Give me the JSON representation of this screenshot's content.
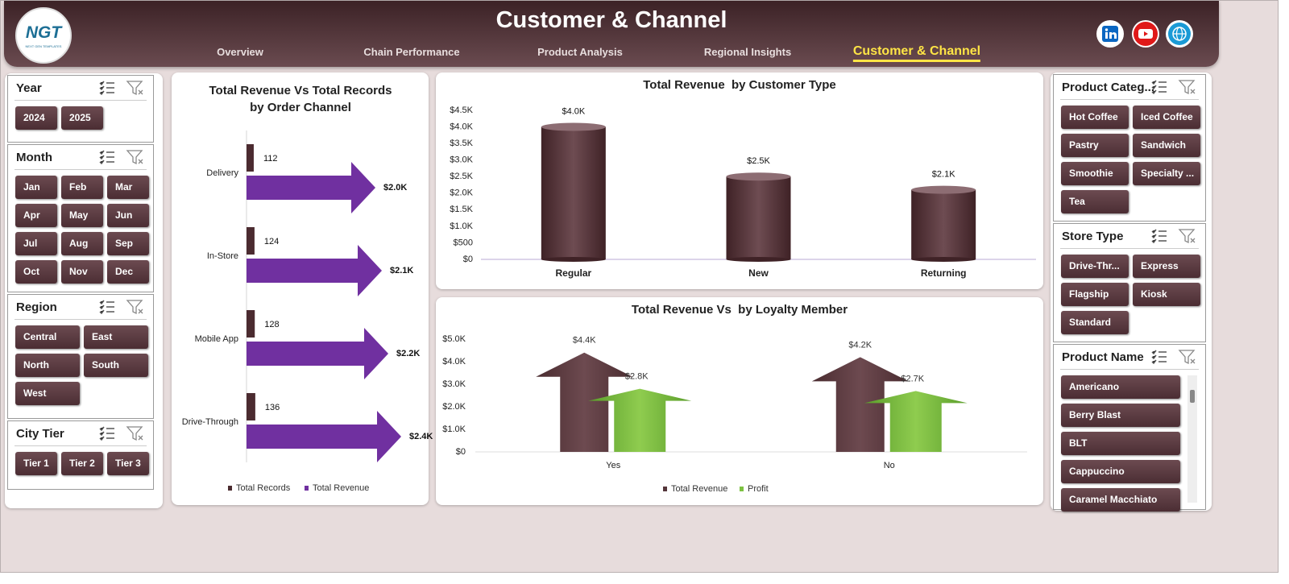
{
  "header": {
    "logo": "NGT",
    "logo_tagline": "NEXT GEN TEMPLATES",
    "title": "Customer & Channel",
    "nav": [
      "Overview",
      "Chain Performance",
      "Product Analysis",
      "Regional Insights",
      "Customer & Channel"
    ],
    "active_nav": 4
  },
  "slicers_left": [
    {
      "title": "Year",
      "items": [
        "2024",
        "2025"
      ]
    },
    {
      "title": "Month",
      "items": [
        "Jan",
        "Feb",
        "Mar",
        "Apr",
        "May",
        "Jun",
        "Jul",
        "Aug",
        "Sep",
        "Oct",
        "Nov",
        "Dec"
      ]
    },
    {
      "title": "Region",
      "items": [
        "Central",
        "East",
        "North",
        "South",
        "West"
      ]
    },
    {
      "title": "City Tier",
      "items": [
        "Tier 1",
        "Tier 2",
        "Tier 3"
      ]
    }
  ],
  "slicers_right": [
    {
      "title": "Product Categ...",
      "items": [
        "Hot Coffee",
        "Iced Coffee",
        "Pastry",
        "Sandwich",
        "Smoothie",
        "Specialty ...",
        "Tea"
      ]
    },
    {
      "title": "Store Type",
      "items": [
        "Drive-Thr...",
        "Express",
        "Flagship",
        "Kiosk",
        "Standard"
      ]
    },
    {
      "title": "Product Name",
      "items": [
        "Americano",
        "Berry Blast",
        "BLT",
        "Cappuccino",
        "Caramel Macchiato"
      ]
    }
  ],
  "chart_data": [
    {
      "type": "bar",
      "orientation": "horizontal",
      "title": "Total Revenue Vs Total Records by Order Channel",
      "categories": [
        "Delivery",
        "In-Store",
        "Mobile App",
        "Drive-Through"
      ],
      "series": [
        {
          "name": "Total Records",
          "color": "#4b2b30",
          "values": [
            112,
            124,
            128,
            136
          ]
        },
        {
          "name": "Total Revenue",
          "color": "#7030a0",
          "values": [
            2000,
            2100,
            2200,
            2400
          ],
          "value_labels": [
            "$2.0K",
            "$2.1K",
            "$2.2K",
            "$2.4K"
          ]
        }
      ],
      "legend": "bottom"
    },
    {
      "type": "bar",
      "title": "Total Revenue  by Customer Type",
      "categories": [
        "Regular",
        "New",
        "Returning"
      ],
      "values": [
        4000,
        2500,
        2100
      ],
      "value_labels": [
        "$4.0K",
        "$2.5K",
        "$2.1K"
      ],
      "color": "#5a3a3f",
      "ylim": [
        0,
        4500
      ],
      "yticks": [
        {
          "value": 0,
          "label": "$0"
        },
        {
          "value": 500,
          "label": "$500"
        },
        {
          "value": 1000,
          "label": "$1.0K"
        },
        {
          "value": 1500,
          "label": "$1.5K"
        },
        {
          "value": 2000,
          "label": "$2.0K"
        },
        {
          "value": 2500,
          "label": "$2.5K"
        },
        {
          "value": 3000,
          "label": "$3.0K"
        },
        {
          "value": 3500,
          "label": "$3.5K"
        },
        {
          "value": 4000,
          "label": "$4.0K"
        },
        {
          "value": 4500,
          "label": "$4.5K"
        }
      ],
      "grid": false
    },
    {
      "type": "bar",
      "title": "Total Revenue Vs  by Loyalty Member",
      "categories": [
        "Yes",
        "No"
      ],
      "series": [
        {
          "name": "Total Revenue",
          "color": "#55363b",
          "values": [
            4400,
            4200
          ],
          "value_labels": [
            "$4.4K",
            "$4.2K"
          ]
        },
        {
          "name": "Profit",
          "color": "#7dc242",
          "values": [
            2800,
            2700
          ],
          "value_labels": [
            "$2.8K",
            "$2.7K"
          ]
        }
      ],
      "ylim": [
        0,
        5000
      ],
      "yticks": [
        {
          "value": 0,
          "label": "$0"
        },
        {
          "value": 1000,
          "label": "$1.0K"
        },
        {
          "value": 2000,
          "label": "$2.0K"
        },
        {
          "value": 3000,
          "label": "$3.0K"
        },
        {
          "value": 4000,
          "label": "$4.0K"
        },
        {
          "value": 5000,
          "label": "$5.0K"
        }
      ],
      "grid": false,
      "legend": "bottom"
    }
  ]
}
